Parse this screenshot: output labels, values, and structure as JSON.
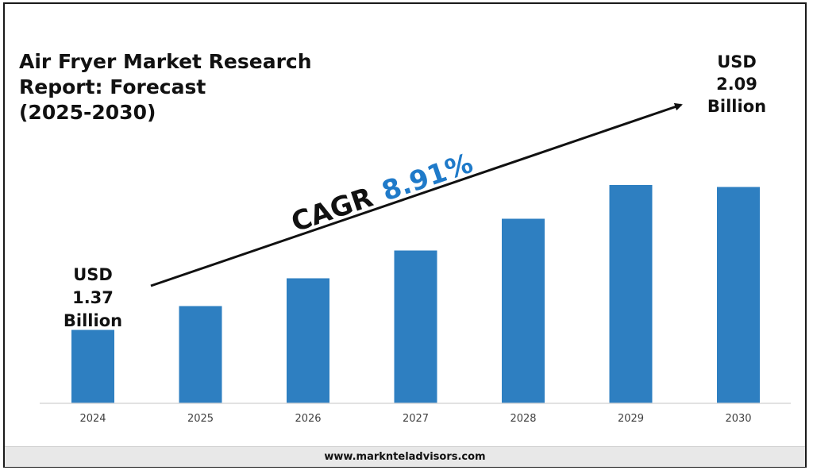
{
  "title_lines": [
    "Air Fryer Market Research",
    "Report: Forecast",
    "(2025-2030)"
  ],
  "footer": "www.marknteladvisors.com",
  "cagr": {
    "label": "CAGR",
    "value": "8.91%"
  },
  "start_annotation": [
    "USD",
    "1.37",
    "Billion"
  ],
  "end_annotation": [
    "USD",
    "2.09",
    "Billion"
  ],
  "colors": {
    "bar": "#2e7fc1",
    "cagr_value": "#1f7ac9",
    "axis": "#d9d9d9"
  },
  "chart_data": {
    "type": "bar",
    "title": "Air Fryer Market Research Report: Forecast (2025-2030)",
    "categories": [
      "2024",
      "2025",
      "2026",
      "2027",
      "2028",
      "2029",
      "2030"
    ],
    "values": [
      1.37,
      1.49,
      1.63,
      1.77,
      1.93,
      2.1,
      2.09
    ],
    "unit": "USD Billion",
    "xlabel": "",
    "ylabel": "",
    "grid": false,
    "legend": "none"
  }
}
